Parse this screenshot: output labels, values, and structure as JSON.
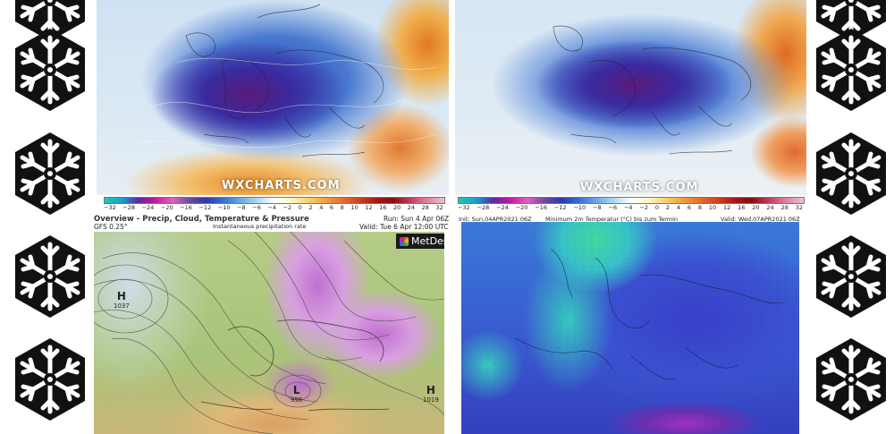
{
  "top_left": {
    "watermark": "WXCHARTS.COM",
    "scale_ticks": [
      "−32",
      "−28",
      "−24",
      "−20",
      "−16",
      "−12",
      "−10",
      "−8",
      "−6",
      "−4",
      "−2",
      "0",
      "2",
      "4",
      "6",
      "8",
      "10",
      "12",
      "16",
      "20",
      "24",
      "28",
      "32"
    ]
  },
  "top_right": {
    "watermark": "WXCHARTS.COM",
    "scale_ticks": [
      "−32",
      "−28",
      "−24",
      "−20",
      "−16",
      "−12",
      "−10",
      "−8",
      "−6",
      "−4",
      "−2",
      "0",
      "2",
      "4",
      "6",
      "8",
      "10",
      "12",
      "16",
      "20",
      "24",
      "28",
      "32"
    ]
  },
  "bottom_left": {
    "title": "Overview - Precip, Cloud, Temperature & Pressure",
    "model": "GFS 0.25°",
    "subtitle": "Instantaneous precipitation rate",
    "run": "Run: Sun 4 Apr 06Z",
    "valid": "Valid: Tue 6 Apr 12:00 UTC",
    "brand": "MetDesk",
    "pressure_labels": [
      {
        "type": "H",
        "value": "1037"
      },
      {
        "type": "L",
        "value": "996"
      },
      {
        "type": "H",
        "value": "1019"
      }
    ]
  },
  "bottom_right": {
    "init": "Init: Sun,04APR2021 06Z",
    "title": "Minimum 2m Temperatur (°C) bis zum Termin",
    "valid": "Valid: Wed,07APR2021 06Z"
  },
  "colors": {
    "blue_deep": "#1a3aa8",
    "purple": "#6a1a8a",
    "orange": "#e88a20",
    "map_green": "#a9c47a"
  }
}
